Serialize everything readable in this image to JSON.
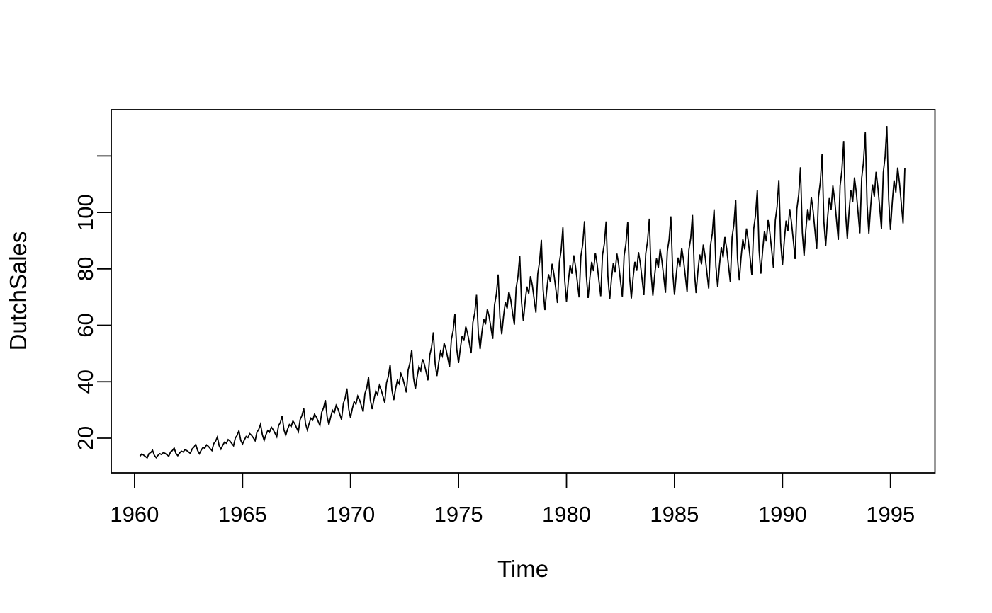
{
  "chart": {
    "xlabel": "Time",
    "ylabel": "DutchSales"
  },
  "chart_data": {
    "type": "line",
    "title": "",
    "xlabel": "Time",
    "ylabel": "DutchSales",
    "grid": false,
    "legend_position": null,
    "background": "#ffffff",
    "axis_color": "#000000",
    "x_ticks": [
      1960,
      1965,
      1970,
      1975,
      1980,
      1985,
      1990,
      1995
    ],
    "x_tick_labels": [
      "1960",
      "1965",
      "1970",
      "1975",
      "1980",
      "1985",
      "1990",
      "1995"
    ],
    "y_ticks": [
      20,
      40,
      60,
      80,
      100,
      120
    ],
    "y_tick_labels": [
      "20",
      "40",
      "60",
      "80",
      "100",
      ""
    ],
    "xlim": [
      1958.92,
      1997.06
    ],
    "ylim": [
      7.7,
      136.4
    ],
    "series": [
      {
        "name": "DutchSales",
        "color": "#000000",
        "start_year": 1960,
        "start_month": 4,
        "end_year": 1995,
        "end_month": 9,
        "frequency": 12,
        "values": [
          13.6,
          14.4,
          14.0,
          13.5,
          13.0,
          14.5,
          14.9,
          15.7,
          13.9,
          13.1,
          13.9,
          14.5,
          14.2,
          14.9,
          14.6,
          14.1,
          13.6,
          15.1,
          15.6,
          16.5,
          14.6,
          13.8,
          14.7,
          15.4,
          15.1,
          15.9,
          15.6,
          15.1,
          14.6,
          16.2,
          16.8,
          17.8,
          15.7,
          14.5,
          15.7,
          16.7,
          16.4,
          17.6,
          17.1,
          16.3,
          15.6,
          18.1,
          18.9,
          20.4,
          17.3,
          16.1,
          17.5,
          18.6,
          18.2,
          19.5,
          19.0,
          18.1,
          17.3,
          20.1,
          21.0,
          22.6,
          19.2,
          17.9,
          19.4,
          20.6,
          20.2,
          21.6,
          21.0,
          20.1,
          19.1,
          22.1,
          23.1,
          24.9,
          21.2,
          19.2,
          21.2,
          22.7,
          22.1,
          23.9,
          23.0,
          21.8,
          20.5,
          24.4,
          25.6,
          27.9,
          23.0,
          21.0,
          23.1,
          24.8,
          24.1,
          26.1,
          25.1,
          23.7,
          22.3,
          26.6,
          28.0,
          30.5,
          25.1,
          22.9,
          25.2,
          27.1,
          26.4,
          28.5,
          27.5,
          26.0,
          24.5,
          29.2,
          30.7,
          33.5,
          27.6,
          24.8,
          27.6,
          29.9,
          29.0,
          31.6,
          30.4,
          28.5,
          26.6,
          32.3,
          34.2,
          37.6,
          30.3,
          27.3,
          30.5,
          33.0,
          32.0,
          34.9,
          33.6,
          31.5,
          29.4,
          35.8,
          37.8,
          41.6,
          33.5,
          30.3,
          33.7,
          36.6,
          35.4,
          38.7,
          37.1,
          34.9,
          32.6,
          39.6,
          41.9,
          46.0,
          37.1,
          33.5,
          37.4,
          40.5,
          39.3,
          42.9,
          41.3,
          38.8,
          36.2,
          44.1,
          46.6,
          51.3,
          41.4,
          37.4,
          41.7,
          45.3,
          43.9,
          48.0,
          46.2,
          43.4,
          40.5,
          49.4,
          52.2,
          57.5,
          46.4,
          42.0,
          46.8,
          50.7,
          49.1,
          53.6,
          51.6,
          48.4,
          45.2,
          55.0,
          58.1,
          64.0,
          51.6,
          46.6,
          51.9,
          56.3,
          54.5,
          59.5,
          57.2,
          53.7,
          50.1,
          61.0,
          64.4,
          70.8,
          57.1,
          51.6,
          57.5,
          62.2,
          60.3,
          65.7,
          63.1,
          59.2,
          55.2,
          67.2,
          71.0,
          78.0,
          62.9,
          56.8,
          63.1,
          68.3,
          66.0,
          71.9,
          69.0,
          64.6,
          60.2,
          73.2,
          77.1,
          84.7,
          68.2,
          61.5,
          68.3,
          73.7,
          71.2,
          77.4,
          74.1,
          69.3,
          64.5,
          78.2,
          82.4,
          90.3,
          72.6,
          65.4,
          72.5,
          78.1,
          75.3,
          81.8,
          78.2,
          73.1,
          67.9,
          82.2,
          86.5,
          94.7,
          76.0,
          68.4,
          75.6,
          81.3,
          78.3,
          84.8,
          80.9,
          75.4,
          69.9,
          84.5,
          88.7,
          96.9,
          77.6,
          69.7,
          76.9,
          82.5,
          79.2,
          85.7,
          81.7,
          76.0,
          70.3,
          84.9,
          88.9,
          96.8,
          77.3,
          69.2,
          76.5,
          82.1,
          78.9,
          85.4,
          81.4,
          75.7,
          70.1,
          84.7,
          88.8,
          96.7,
          77.4,
          69.5,
          76.9,
          82.5,
          79.3,
          85.9,
          81.9,
          76.3,
          70.7,
          85.4,
          89.7,
          97.8,
          78.2,
          70.5,
          77.9,
          83.7,
          80.4,
          87.0,
          82.9,
          77.2,
          71.5,
          86.3,
          90.4,
          98.6,
          78.9,
          70.8,
          78.2,
          84.0,
          80.7,
          87.4,
          83.2,
          77.5,
          71.8,
          86.7,
          90.9,
          99.1,
          79.3,
          71.4,
          79.0,
          85.1,
          81.6,
          88.6,
          84.5,
          78.8,
          73.0,
          88.3,
          92.6,
          101.1,
          81.0,
          73.5,
          81.4,
          87.7,
          84.1,
          91.3,
          87.1,
          81.2,
          75.3,
          91.2,
          95.7,
          104.5,
          83.7,
          75.9,
          84.1,
          90.5,
          86.9,
          94.3,
          89.9,
          83.9,
          77.8,
          94.2,
          98.9,
          108.0,
          86.5,
          78.3,
          86.7,
          93.4,
          89.7,
          97.3,
          92.8,
          86.6,
          80.3,
          97.2,
          102.1,
          111.5,
          89.3,
          81.3,
          90.1,
          97.1,
          93.3,
          101.2,
          96.5,
          90.1,
          83.5,
          101.2,
          106.3,
          116.0,
          92.9,
          84.7,
          93.9,
          101.2,
          97.2,
          105.4,
          100.6,
          93.9,
          87.0,
          105.4,
          110.7,
          120.8,
          96.8,
          88.2,
          97.6,
          105.1,
          101.0,
          109.5,
          104.4,
          97.4,
          90.3,
          109.4,
          114.8,
          125.3,
          100.3,
          90.7,
          100.4,
          107.9,
          103.7,
          112.4,
          107.1,
          99.9,
          92.6,
          112.2,
          117.7,
          128.4,
          102.8,
          92.5,
          102.2,
          109.9,
          105.6,
          114.4,
          109.0,
          101.7,
          94.2,
          114.2,
          119.7,
          130.6,
          104.5,
          93.8,
          103.7,
          111.4,
          107.1,
          115.9,
          110.5,
          103.1,
          96.1,
          115.7
        ]
      }
    ]
  }
}
